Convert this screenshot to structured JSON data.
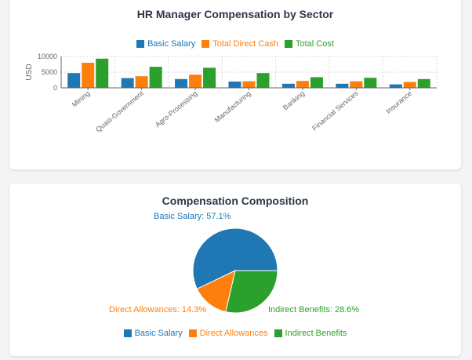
{
  "colors": {
    "basic": "#1f77b4",
    "direct": "#ff7f0e",
    "total": "#2ca02c",
    "grid": "#d9d9d9",
    "axis": "#666666",
    "text": "#2d3748"
  },
  "bar_chart": {
    "title": "HR Manager Compensation by Sector",
    "legend": [
      "Basic Salary",
      "Total Direct Cash",
      "Total Cost"
    ]
  },
  "pie_chart": {
    "title": "Compensation Composition",
    "legend": [
      "Basic Salary",
      "Direct Allowances",
      "Indirect Benefits"
    ],
    "labels": {
      "basic": "Basic Salary: 57.1%",
      "direct": "Direct Allowances: 14.3%",
      "indirect": "Indirect Benefits: 28.6%"
    }
  },
  "chart_data": [
    {
      "type": "bar",
      "title": "HR Manager Compensation by Sector",
      "xlabel": "",
      "ylabel": "USD",
      "ylim": [
        0,
        10000
      ],
      "yticks": [
        0,
        5000,
        10000
      ],
      "grid": true,
      "legend_position": "top",
      "categories": [
        "Mining",
        "Quasi-Government",
        "Agro-Processing",
        "Manufacturing",
        "Banking",
        "Financial Services",
        "Insurance"
      ],
      "series": [
        {
          "name": "Basic Salary",
          "values": [
            4700,
            3100,
            2800,
            2000,
            1300,
            1300,
            1100
          ]
        },
        {
          "name": "Total Direct Cash",
          "values": [
            8000,
            3700,
            4200,
            2100,
            2200,
            2100,
            1900
          ]
        },
        {
          "name": "Total Cost",
          "values": [
            9300,
            6700,
            6400,
            4700,
            3400,
            3200,
            2800
          ]
        }
      ]
    },
    {
      "type": "pie",
      "title": "Compensation Composition",
      "legend_position": "bottom",
      "categories": [
        "Basic Salary",
        "Direct Allowances",
        "Indirect Benefits"
      ],
      "values": [
        57.1,
        14.3,
        28.6
      ]
    }
  ]
}
